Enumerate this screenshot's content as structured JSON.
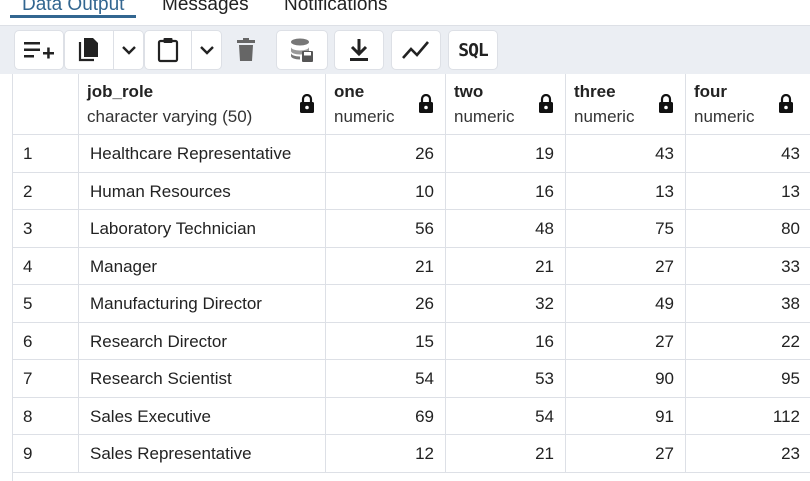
{
  "tabs": [
    {
      "label": "Data Output",
      "active": true
    },
    {
      "label": "Messages",
      "active": false
    },
    {
      "label": "Notifications",
      "active": false
    }
  ],
  "toolbar": {
    "buttons": [
      {
        "name": "add-row-button",
        "icon": "add-row-icon"
      },
      {
        "name": "copy-button",
        "icon": "copy-icon"
      },
      {
        "name": "copy-dropdown-button",
        "icon": "chevron-down-icon"
      },
      {
        "name": "paste-button",
        "icon": "clipboard-icon"
      },
      {
        "name": "paste-dropdown-button",
        "icon": "chevron-down-icon"
      },
      {
        "name": "delete-button",
        "icon": "trash-icon"
      },
      {
        "name": "save-data-button",
        "icon": "database-save-icon"
      },
      {
        "name": "download-button",
        "icon": "download-icon"
      },
      {
        "name": "graph-visualiser-button",
        "icon": "line-chart-icon"
      },
      {
        "name": "sql-button",
        "label": "SQL"
      }
    ]
  },
  "grid": {
    "columns": [
      {
        "name": "job_role",
        "type": "character varying (50)",
        "locked": true
      },
      {
        "name": "one",
        "type": "numeric",
        "locked": true
      },
      {
        "name": "two",
        "type": "numeric",
        "locked": true
      },
      {
        "name": "three",
        "type": "numeric",
        "locked": true
      },
      {
        "name": "four",
        "type": "numeric",
        "locked": true
      }
    ],
    "rows": [
      {
        "n": "1",
        "job_role": "Healthcare Representative",
        "one": "26",
        "two": "19",
        "three": "43",
        "four": "43"
      },
      {
        "n": "2",
        "job_role": "Human Resources",
        "one": "10",
        "two": "16",
        "three": "13",
        "four": "13"
      },
      {
        "n": "3",
        "job_role": "Laboratory Technician",
        "one": "56",
        "two": "48",
        "three": "75",
        "four": "80"
      },
      {
        "n": "4",
        "job_role": "Manager",
        "one": "21",
        "two": "21",
        "three": "27",
        "four": "33"
      },
      {
        "n": "5",
        "job_role": "Manufacturing Director",
        "one": "26",
        "two": "32",
        "three": "49",
        "four": "38"
      },
      {
        "n": "6",
        "job_role": "Research Director",
        "one": "15",
        "two": "16",
        "three": "27",
        "four": "22"
      },
      {
        "n": "7",
        "job_role": "Research Scientist",
        "one": "54",
        "two": "53",
        "three": "90",
        "four": "95"
      },
      {
        "n": "8",
        "job_role": "Sales Executive",
        "one": "69",
        "two": "54",
        "three": "91",
        "four": "112"
      },
      {
        "n": "9",
        "job_role": "Sales Representative",
        "one": "12",
        "two": "21",
        "three": "27",
        "four": "23"
      }
    ]
  },
  "colors": {
    "accent": "#326690",
    "border": "#dde0e6",
    "toolbar_bg": "#ebeef3",
    "icon": "#222222"
  }
}
